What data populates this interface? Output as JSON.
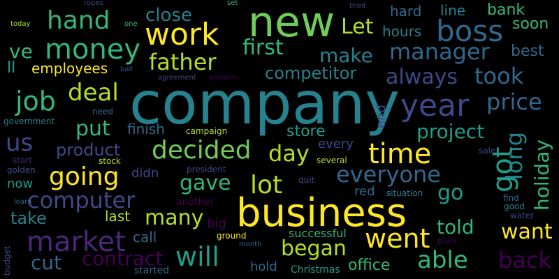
{
  "palette": {
    "background": "#000000",
    "yellow": "#fde725",
    "green": "#b5de2b",
    "lime": "#6ece58",
    "seafoam": "#35b779",
    "teal": "#1f9e89",
    "cyan": "#26828e",
    "blue": "#31688e",
    "indigo": "#3e4989",
    "violet": "#482878",
    "purple": "#440154"
  },
  "words": [
    {
      "text": "company",
      "color": "#26828e"
    },
    {
      "text": "business",
      "color": "#fde725"
    },
    {
      "text": "new",
      "color": "#6ece58"
    },
    {
      "text": "work",
      "color": "#fde725"
    },
    {
      "text": "boss",
      "color": "#31688e"
    },
    {
      "text": "year",
      "color": "#3e4989"
    },
    {
      "text": "got",
      "color": "#1f9e89"
    },
    {
      "text": "time",
      "color": "#fde725"
    },
    {
      "text": "decided",
      "color": "#6ece58"
    },
    {
      "text": "market",
      "color": "#482878"
    },
    {
      "text": "money",
      "color": "#35b779"
    },
    {
      "text": "hand",
      "color": "#35b779"
    },
    {
      "text": "manager",
      "color": "#31688e"
    },
    {
      "text": "everyone",
      "color": "#31688e"
    },
    {
      "text": "going",
      "color": "#fde725"
    },
    {
      "text": "computer",
      "color": "#3e4989"
    },
    {
      "text": "lot",
      "color": "#b5de2b"
    },
    {
      "text": "went",
      "color": "#fde725"
    },
    {
      "text": "father",
      "color": "#b5de2b"
    },
    {
      "text": "first",
      "color": "#35b779"
    },
    {
      "text": "took",
      "color": "#31688e"
    },
    {
      "text": "price",
      "color": "#31688e"
    },
    {
      "text": "job",
      "color": "#35b779"
    },
    {
      "text": "deal",
      "color": "#b5de2b"
    },
    {
      "text": "day",
      "color": "#b5de2b"
    },
    {
      "text": "long",
      "color": "#26828e"
    },
    {
      "text": "holiday",
      "color": "#35b779"
    },
    {
      "text": "will",
      "color": "#1f9e89"
    },
    {
      "text": "able",
      "color": "#35b779"
    },
    {
      "text": "back",
      "color": "#440154"
    },
    {
      "text": "began",
      "color": "#b5de2b"
    },
    {
      "text": "many",
      "color": "#b5de2b"
    },
    {
      "text": "us",
      "color": "#3e4989"
    },
    {
      "text": "put",
      "color": "#35b779"
    },
    {
      "text": "make",
      "color": "#26828e"
    },
    {
      "text": "always",
      "color": "#3e4989"
    },
    {
      "text": "project",
      "color": "#1f9e89"
    },
    {
      "text": "gave",
      "color": "#35b779"
    },
    {
      "text": "go",
      "color": "#1f9e89"
    },
    {
      "text": "want",
      "color": "#fde725"
    },
    {
      "text": "told",
      "color": "#35b779"
    },
    {
      "text": "cut",
      "color": "#31688e"
    },
    {
      "text": "take",
      "color": "#26828e"
    },
    {
      "text": "contract",
      "color": "#440154"
    },
    {
      "text": "product",
      "color": "#3e4989"
    },
    {
      "text": "close",
      "color": "#26828e"
    },
    {
      "text": "Let",
      "color": "#b5de2b"
    },
    {
      "text": "competitor",
      "color": "#26828e"
    },
    {
      "text": "store",
      "color": "#1f9e89"
    },
    {
      "text": "finish",
      "color": "#31688e"
    },
    {
      "text": "office",
      "color": "#35b779"
    },
    {
      "text": "ve",
      "color": "#35b779"
    },
    {
      "text": "employees",
      "color": "#fde725"
    },
    {
      "text": "soon",
      "color": "#35b779"
    },
    {
      "text": "bank",
      "color": "#35b779"
    },
    {
      "text": "best",
      "color": "#31688e"
    },
    {
      "text": "line",
      "color": "#26828e"
    },
    {
      "text": "hard",
      "color": "#31688e"
    },
    {
      "text": "hours",
      "color": "#26828e"
    },
    {
      "text": "every",
      "color": "#3e4989"
    },
    {
      "text": "last",
      "color": "#b5de2b"
    },
    {
      "text": "call",
      "color": "#31688e"
    },
    {
      "text": "now",
      "color": "#1f9e89"
    },
    {
      "text": "hold",
      "color": "#31688e"
    },
    {
      "text": "end",
      "color": "#3e4989"
    },
    {
      "text": "red",
      "color": "#31688e"
    },
    {
      "text": "didn",
      "color": "#3e4989"
    },
    {
      "text": "successful",
      "color": "#35b779"
    },
    {
      "text": "ll",
      "color": "#1f9e89"
    },
    {
      "text": "big",
      "color": "#440154"
    },
    {
      "text": "Christmas",
      "color": "#1f9e89"
    },
    {
      "text": "started",
      "color": "#31688e"
    },
    {
      "text": "good",
      "color": "#26828e"
    },
    {
      "text": "water",
      "color": "#3e4989"
    },
    {
      "text": "find",
      "color": "#31688e"
    },
    {
      "text": "plan",
      "color": "#440154"
    },
    {
      "text": "situation",
      "color": "#26828e"
    },
    {
      "text": "quit",
      "color": "#3e4989"
    },
    {
      "text": "several",
      "color": "#b5de2b"
    },
    {
      "text": "sale",
      "color": "#3e4989"
    },
    {
      "text": "stock",
      "color": "#b5de2b"
    },
    {
      "text": "president",
      "color": "#3e4989"
    },
    {
      "text": "another",
      "color": "#440154"
    },
    {
      "text": "ground",
      "color": "#fde725"
    },
    {
      "text": "month",
      "color": "#31688e"
    },
    {
      "text": "budget",
      "color": "#3e4989"
    },
    {
      "text": "learn",
      "color": "#31688e"
    },
    {
      "text": "golden",
      "color": "#3e4989"
    },
    {
      "text": "start",
      "color": "#482878"
    },
    {
      "text": "need",
      "color": "#31688e"
    },
    {
      "text": "government",
      "color": "#26828e"
    },
    {
      "text": "agreement",
      "color": "#3e4989"
    },
    {
      "text": "problem",
      "color": "#440154"
    },
    {
      "text": "campaign",
      "color": "#b5de2b"
    },
    {
      "text": "ball",
      "color": "#3e4989"
    },
    {
      "text": "today",
      "color": "#b5de2b"
    },
    {
      "text": "one",
      "color": "#35b779"
    },
    {
      "text": "ropes",
      "color": "#3e4989"
    },
    {
      "text": "set",
      "color": "#35b779"
    },
    {
      "text": "tried",
      "color": "#3e4989"
    }
  ]
}
